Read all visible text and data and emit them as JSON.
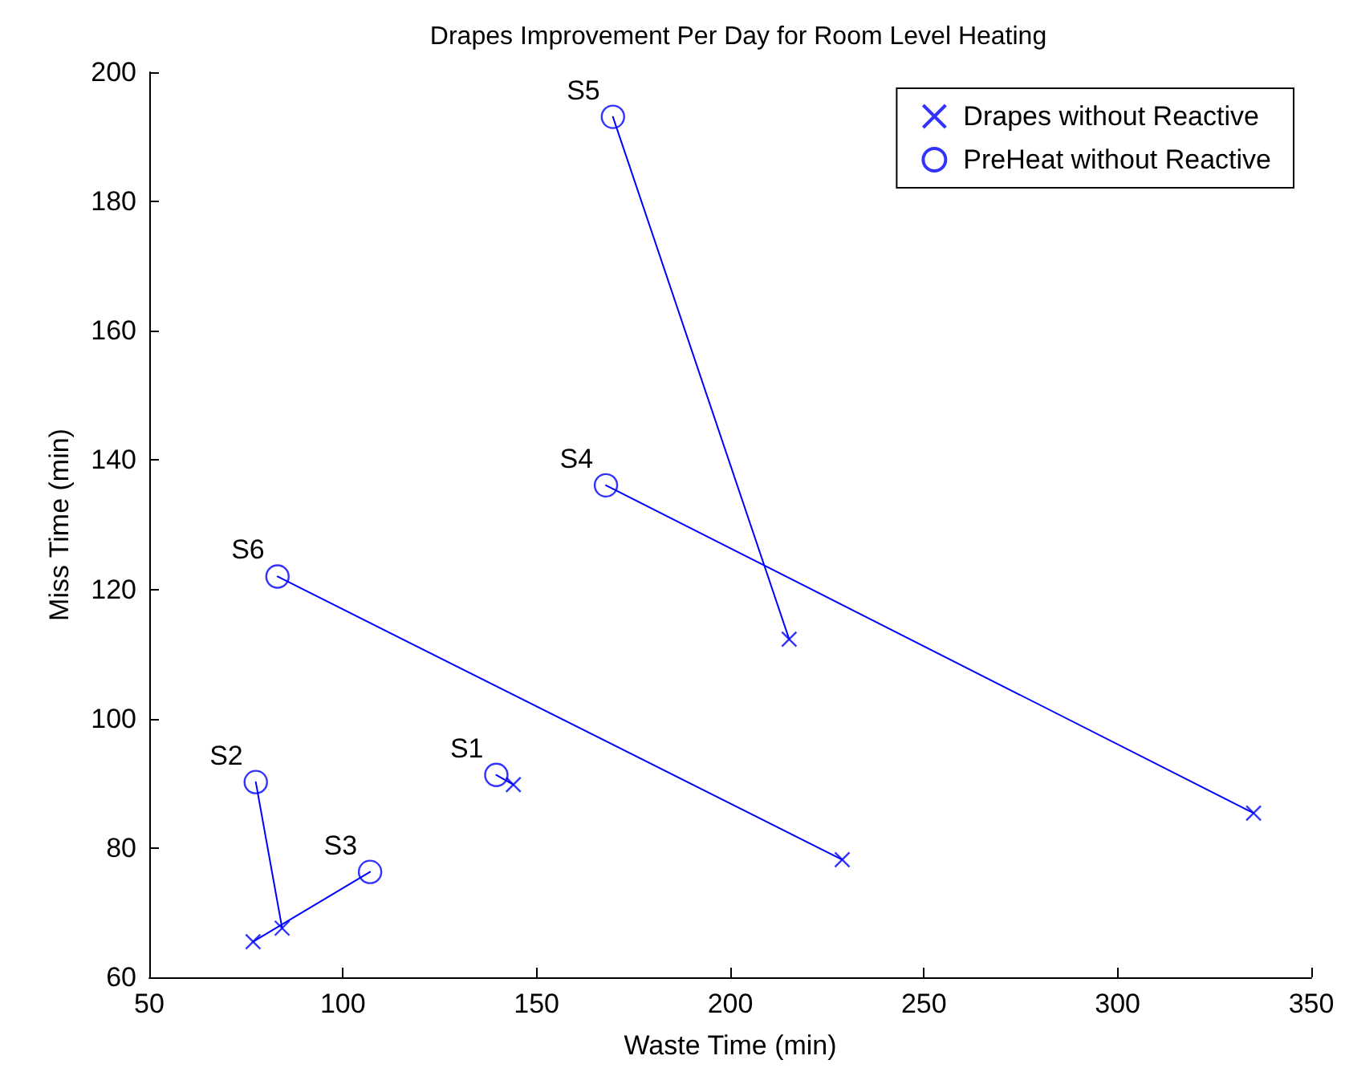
{
  "chart_data": {
    "type": "scatter",
    "title": "Drapes Improvement Per Day for Room Level Heating",
    "xlabel": "Waste Time (min)",
    "ylabel": "Miss Time (min)",
    "xlim": [
      50,
      350
    ],
    "xticks": [
      50,
      100,
      150,
      200,
      250,
      300,
      350
    ],
    "ylim": [
      60,
      200
    ],
    "yticks": [
      60,
      80,
      100,
      120,
      140,
      160,
      180,
      200
    ],
    "grid": false,
    "legend": "top right",
    "series": [
      {
        "name": "Drapes without Reactive",
        "marker": "cross",
        "color": "#0000ff",
        "x": [
          144,
          84.3,
          76.8,
          335.1,
          215.2,
          228.9
        ],
        "values": [
          89.8,
          67.6,
          65.5,
          85.4,
          112.3,
          78.2
        ]
      },
      {
        "name": "PreHeat without Reactive",
        "marker": "circle",
        "color": "#0000ff",
        "x": [
          139.6,
          77.5,
          107,
          167.9,
          169.7,
          83.1
        ],
        "values": [
          91.3,
          90.2,
          76.3,
          136.1,
          193.1,
          122
        ]
      },
      {
        "type": "line",
        "marker": "none",
        "line_style": "solid",
        "color": "#0000ff",
        "x": [
          139.6,
          144
        ],
        "values": [
          91.3,
          89.8
        ]
      },
      {
        "type": "line",
        "marker": "none",
        "line_style": "solid",
        "color": "#0000ff",
        "x": [
          77.5,
          84.3
        ],
        "values": [
          90.2,
          67.6
        ]
      },
      {
        "type": "line",
        "marker": "none",
        "line_style": "solid",
        "color": "#0000ff",
        "x": [
          107,
          76.8
        ],
        "values": [
          76.3,
          65.5
        ]
      },
      {
        "type": "line",
        "marker": "none",
        "line_style": "solid",
        "color": "#0000ff",
        "x": [
          167.9,
          335.1
        ],
        "values": [
          136.1,
          85.4
        ]
      },
      {
        "type": "line",
        "marker": "none",
        "line_style": "solid",
        "color": "#0000ff",
        "x": [
          169.7,
          215.2
        ],
        "values": [
          193.1,
          112.3
        ]
      },
      {
        "type": "line",
        "marker": "none",
        "line_style": "solid",
        "color": "#0000ff",
        "x": [
          83.1,
          228.9
        ],
        "values": [
          122,
          78.2
        ]
      }
    ],
    "annotations": [
      {
        "text": "S1",
        "x": 139.6,
        "y": 91.3
      },
      {
        "text": "S2",
        "x": 77.5,
        "y": 90.2
      },
      {
        "text": "S3",
        "x": 107,
        "y": 76.3
      },
      {
        "text": "S4",
        "x": 167.9,
        "y": 136.1
      },
      {
        "text": "S5",
        "x": 169.7,
        "y": 193.1
      },
      {
        "text": "S6",
        "x": 83.1,
        "y": 122
      }
    ]
  }
}
